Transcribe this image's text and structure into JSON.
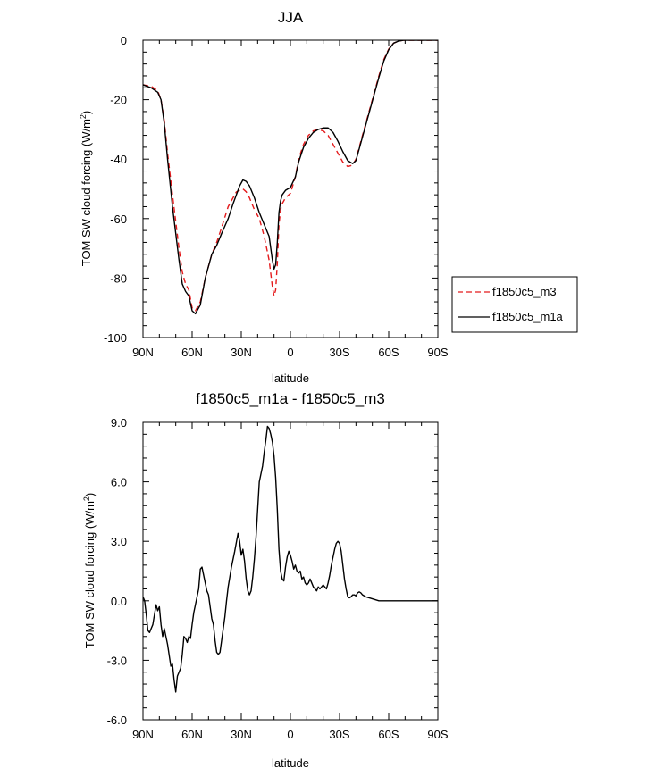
{
  "chart_data": [
    {
      "type": "line",
      "title": "JJA",
      "xlabel": "latitude",
      "ylabel": "TOM SW cloud forcing (W/m²)",
      "ylabel_main": "TOM SW cloud forcing (W/m",
      "ylabel_sup": "2",
      "ylabel_tail": ")",
      "x_unit": "degrees latitude (north positive)",
      "xlim": [
        90,
        -90
      ],
      "ylim": [
        -100,
        0
      ],
      "x_ticks": [
        90,
        60,
        30,
        0,
        -30,
        -60,
        -90
      ],
      "x_tick_labels": [
        "90N",
        "60N",
        "30N",
        "0",
        "30S",
        "60S",
        "90S"
      ],
      "y_ticks": [
        -100,
        -80,
        -60,
        -40,
        -20,
        0
      ],
      "y_tick_labels": [
        "-100",
        "-80",
        "-60",
        "-40",
        "-20",
        "0"
      ],
      "grid": false,
      "legend_position": "right-outside",
      "series": [
        {
          "name": "f1850c5_m3",
          "color": "#e41a1c",
          "dash": "dashed",
          "x": [
            90,
            85,
            81,
            79,
            77,
            75,
            72,
            68,
            66,
            64,
            62,
            60,
            58,
            55,
            52,
            48,
            45,
            42,
            38,
            35,
            33,
            31,
            29,
            27,
            25,
            22,
            19,
            16,
            13,
            11,
            10,
            9,
            8,
            7,
            6,
            5,
            3,
            0,
            -3,
            -5,
            -8,
            -11,
            -14,
            -17,
            -20,
            -23,
            -26,
            -29,
            -32,
            -35,
            -38,
            -40,
            -42,
            -45,
            -48,
            -51,
            -54,
            -57,
            -60,
            -63,
            -66,
            -69,
            -72,
            -75,
            -80,
            -90
          ],
          "y": [
            -15,
            -15.5,
            -17,
            -20,
            -27,
            -38,
            -52,
            -70,
            -78,
            -82,
            -84,
            -90,
            -91,
            -88,
            -80,
            -72,
            -68,
            -63,
            -56,
            -53,
            -51,
            -50.5,
            -50,
            -51,
            -53,
            -57,
            -60,
            -66,
            -74,
            -83,
            -86,
            -84,
            -75,
            -62,
            -57,
            -55,
            -53,
            -51.5,
            -46,
            -40,
            -35,
            -32,
            -30.5,
            -30,
            -30.5,
            -32,
            -35,
            -38,
            -41,
            -42.5,
            -42,
            -40,
            -36,
            -30,
            -24,
            -18,
            -12,
            -6.5,
            -3,
            -1,
            -0.3,
            0,
            0,
            0,
            0,
            0
          ]
        },
        {
          "name": "f1850c5_m1a",
          "color": "#000000",
          "dash": "solid",
          "x": [
            90,
            85,
            81,
            79,
            77,
            75,
            72,
            68,
            66,
            64,
            62,
            60,
            58,
            55,
            52,
            48,
            45,
            42,
            38,
            35,
            33,
            31,
            29,
            27,
            25,
            22,
            19,
            16,
            13,
            11,
            10,
            9,
            8,
            7,
            6,
            5,
            3,
            0,
            -3,
            -5,
            -8,
            -11,
            -14,
            -17,
            -20,
            -23,
            -26,
            -29,
            -32,
            -35,
            -38,
            -40,
            -42,
            -45,
            -48,
            -51,
            -54,
            -57,
            -60,
            -63,
            -66,
            -69,
            -72,
            -75,
            -80,
            -90
          ],
          "y": [
            -15,
            -16,
            -17.5,
            -20,
            -28,
            -40,
            -56,
            -74,
            -82,
            -84.5,
            -86,
            -91,
            -92,
            -89,
            -80,
            -72,
            -69,
            -65,
            -60,
            -55,
            -52,
            -49,
            -47,
            -47.5,
            -49,
            -53,
            -58,
            -62,
            -66,
            -74,
            -77,
            -75.5,
            -68,
            -58,
            -54,
            -52,
            -50.5,
            -49.5,
            -46,
            -41,
            -36,
            -33,
            -31,
            -30,
            -29.5,
            -29.5,
            -31,
            -34,
            -37.5,
            -40.5,
            -41.5,
            -40.5,
            -36.5,
            -30.5,
            -24.5,
            -18.5,
            -12.5,
            -7,
            -3.2,
            -1,
            -0.3,
            0,
            0,
            0,
            0,
            0
          ]
        }
      ]
    },
    {
      "type": "line",
      "title": "f1850c5_m1a - f1850c5_m3",
      "xlabel": "latitude",
      "ylabel": "TOM SW cloud forcing (W/m²)",
      "ylabel_main": "TOM SW cloud forcing (W/m",
      "ylabel_sup": "2",
      "ylabel_tail": ")",
      "x_unit": "degrees latitude (north positive)",
      "xlim": [
        90,
        -90
      ],
      "ylim": [
        -6,
        9
      ],
      "x_ticks": [
        90,
        60,
        30,
        0,
        -30,
        -60,
        -90
      ],
      "x_tick_labels": [
        "90N",
        "60N",
        "30N",
        "0",
        "30S",
        "60S",
        "90S"
      ],
      "y_ticks": [
        -6,
        -3,
        0,
        3,
        6,
        9
      ],
      "y_tick_labels": [
        "-6.0",
        "-3.0",
        "0.0",
        "3.0",
        "6.0",
        "9.0"
      ],
      "grid": false,
      "series": [
        {
          "color": "#000000",
          "dash": "solid",
          "x": [
            90,
            89,
            88,
            87,
            86,
            85,
            84,
            82,
            81,
            80,
            79,
            78,
            77,
            75,
            73,
            72,
            71,
            70,
            69,
            68,
            67,
            66,
            65,
            64,
            63,
            62,
            61,
            60,
            59,
            58,
            57,
            56,
            55,
            54,
            53,
            52,
            51,
            50,
            49,
            48,
            47,
            46,
            45,
            44,
            43,
            42,
            41,
            40,
            39,
            38,
            37,
            36,
            34,
            32,
            31,
            30,
            29,
            28,
            27,
            26,
            25,
            24,
            23,
            22,
            21,
            20,
            19,
            17,
            16,
            15,
            14,
            13,
            12,
            11,
            10,
            9,
            8,
            7,
            6,
            5,
            4,
            3,
            2,
            1,
            0,
            -1,
            -2,
            -3,
            -4,
            -5,
            -6,
            -7,
            -8,
            -9,
            -10,
            -11,
            -12,
            -13,
            -14,
            -15,
            -16,
            -17,
            -18,
            -19,
            -20,
            -21,
            -22,
            -23,
            -24,
            -25,
            -26,
            -27,
            -28,
            -29,
            -30,
            -31,
            -32,
            -33,
            -34,
            -35,
            -36,
            -37,
            -38,
            -39,
            -40,
            -41,
            -42,
            -43,
            -44,
            -45,
            -46,
            -48,
            -50,
            -52,
            -54,
            -56,
            -58,
            -60,
            -62,
            -64,
            -66,
            -68,
            -70,
            -72,
            -75,
            -80,
            -85,
            -90
          ],
          "y": [
            0.2,
            0,
            -0.7,
            -1.5,
            -1.6,
            -1.4,
            -1.2,
            -0.2,
            -0.5,
            -0.3,
            -1.2,
            -1.8,
            -1.4,
            -2.2,
            -3.3,
            -3.2,
            -4.0,
            -4.6,
            -3.8,
            -3.6,
            -3.4,
            -2.7,
            -1.8,
            -1.9,
            -2.1,
            -1.8,
            -1.9,
            -1.2,
            -0.6,
            -0.2,
            0.2,
            0.6,
            1.6,
            1.7,
            1.3,
            0.9,
            0.5,
            0.3,
            -0.3,
            -0.9,
            -1.2,
            -2.0,
            -2.6,
            -2.7,
            -2.6,
            -2.0,
            -1.4,
            -0.8,
            0,
            0.7,
            1.2,
            1.7,
            2.5,
            3.4,
            3.0,
            2.3,
            2.6,
            2.0,
            1.1,
            0.5,
            0.3,
            0.5,
            1.2,
            2.1,
            3.2,
            4.6,
            6.0,
            6.8,
            7.5,
            8.1,
            8.8,
            8.7,
            8.4,
            8.0,
            7.3,
            6.2,
            4.6,
            2.6,
            1.5,
            1.1,
            1.0,
            1.7,
            2.2,
            2.5,
            2.3,
            2.0,
            1.6,
            1.8,
            1.5,
            1.4,
            1.5,
            1.1,
            1.2,
            0.9,
            0.8,
            0.9,
            1.1,
            0.9,
            0.7,
            0.6,
            0.5,
            0.7,
            0.6,
            0.7,
            0.8,
            0.7,
            0.6,
            0.9,
            1.3,
            1.8,
            2.2,
            2.6,
            2.9,
            3.0,
            2.9,
            2.5,
            1.8,
            1.1,
            0.6,
            0.2,
            0.15,
            0.2,
            0.3,
            0.3,
            0.25,
            0.4,
            0.45,
            0.4,
            0.3,
            0.25,
            0.2,
            0.15,
            0.1,
            0.05,
            0,
            0,
            0,
            0,
            0,
            0,
            0,
            0,
            0,
            0,
            0,
            0,
            0,
            0
          ]
        }
      ]
    }
  ]
}
